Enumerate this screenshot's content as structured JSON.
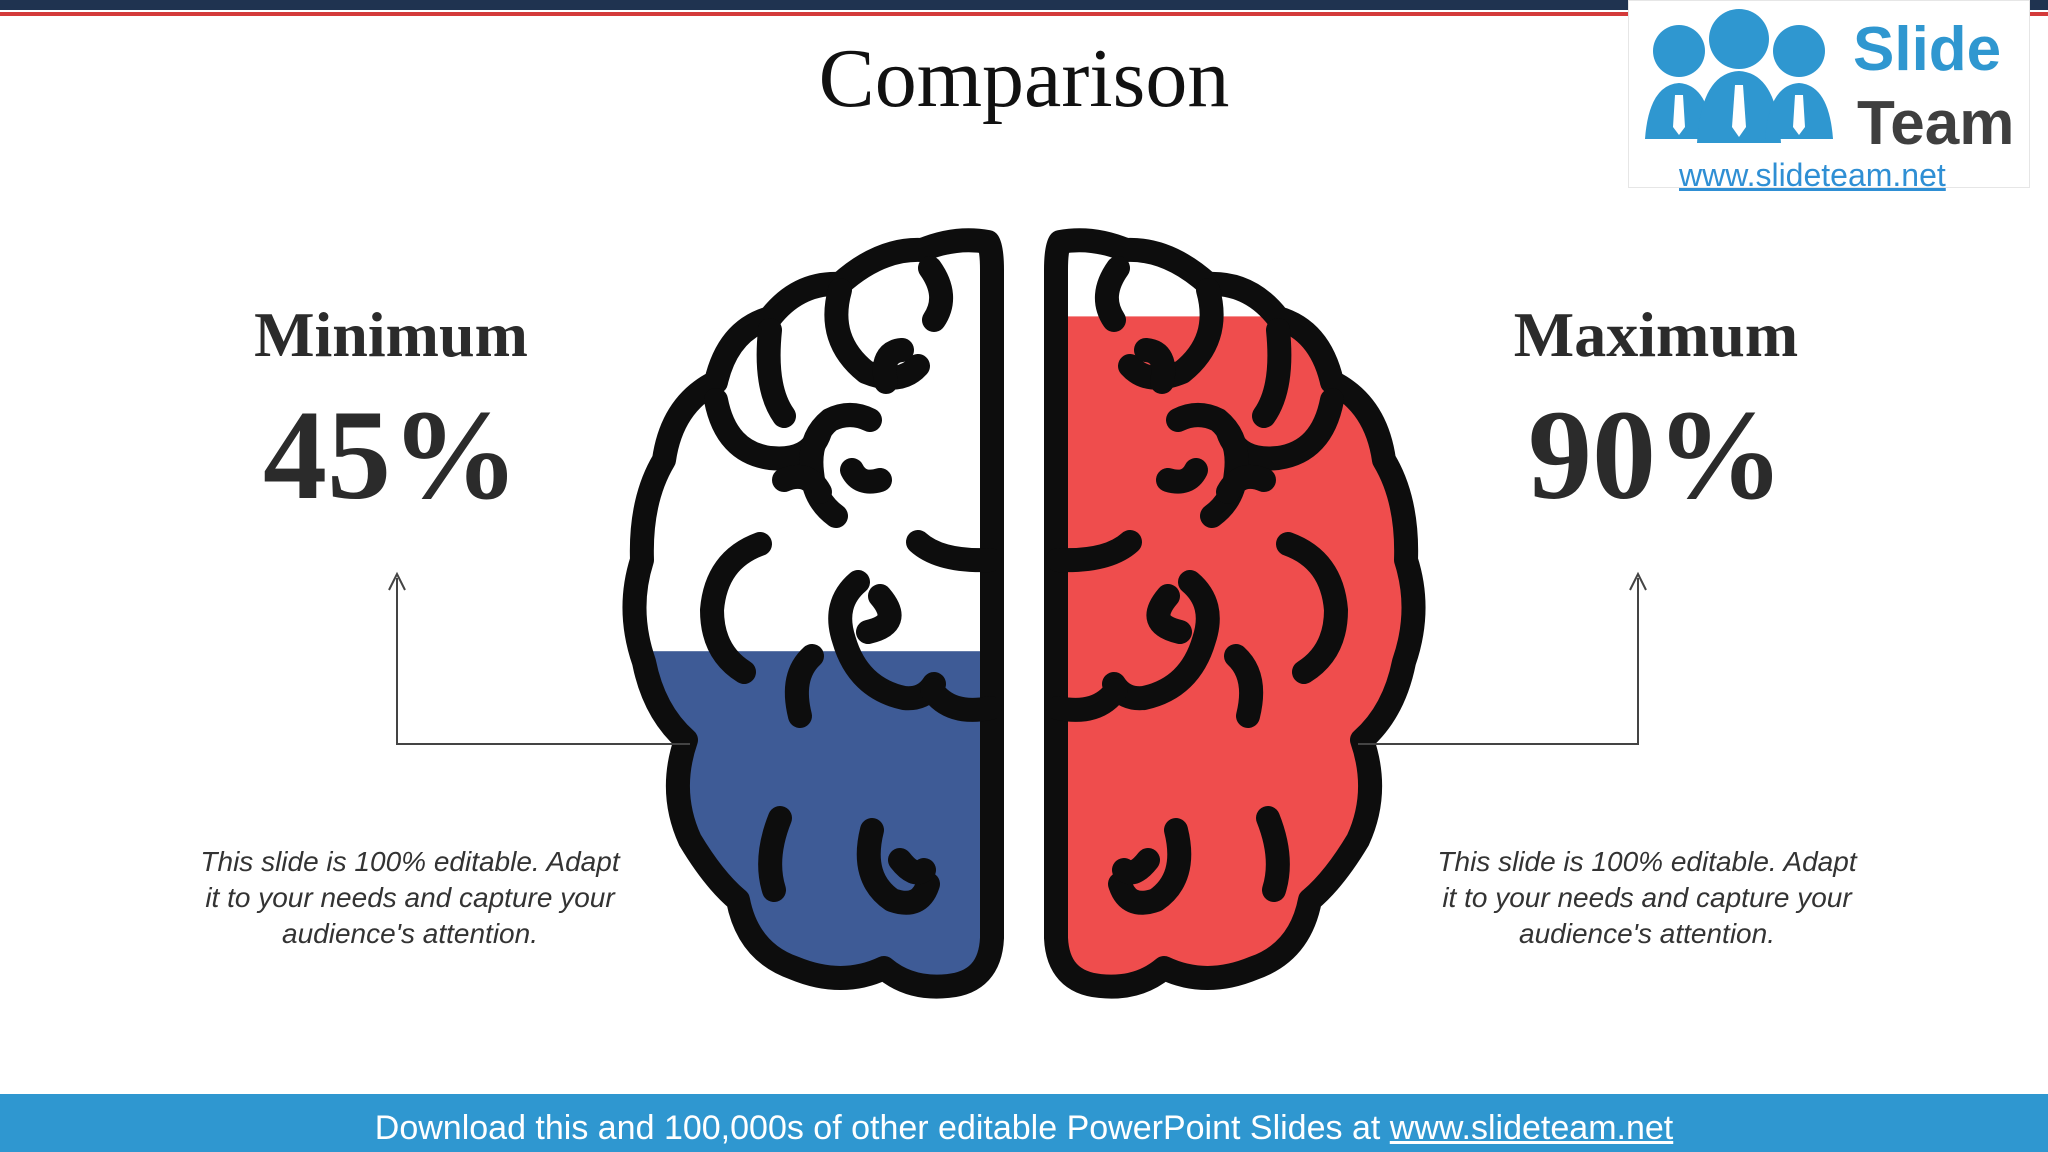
{
  "title": "Comparison",
  "left": {
    "heading": "Minimum",
    "value": "45%",
    "fill_fraction": 0.45,
    "color": "#3e5b96",
    "description": "This slide is 100% editable. Adapt it to your needs and capture your audience's attention."
  },
  "right": {
    "heading": "Maximum",
    "value": "90%",
    "fill_fraction": 0.9,
    "color": "#ef4d4d",
    "description": "This slide is 100% editable. Adapt it to your needs and capture your audience's attention."
  },
  "logo": {
    "word1": "Slide",
    "word2": "Team",
    "url": "www.slideteam.net",
    "blue": "#2f97d0",
    "gray": "#3f3f3f"
  },
  "footer": {
    "text": "Download this and 100,000s of other editable PowerPoint Slides at",
    "link": "www.slideteam.net"
  },
  "colors": {
    "top_bar": "#1f3350",
    "top_stripe": "#d43a3a",
    "bottom_bar": "#2f97d0"
  }
}
